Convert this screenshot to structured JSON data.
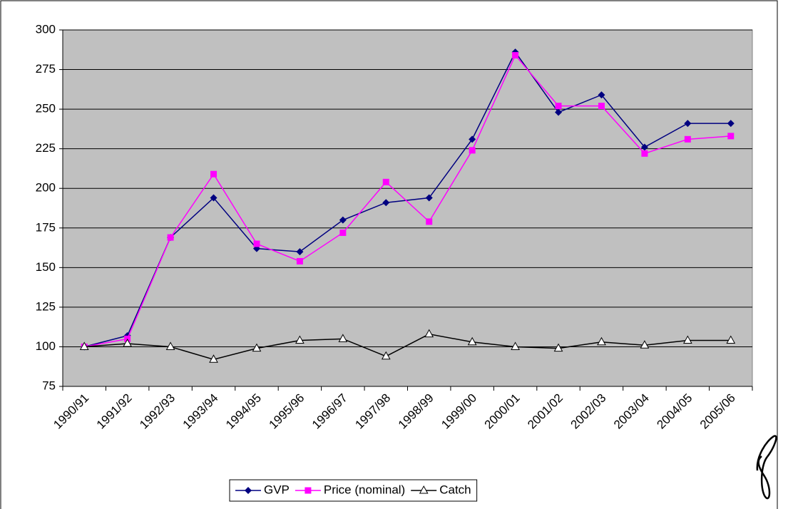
{
  "chart_data": {
    "type": "line",
    "categories": [
      "1990/91",
      "1991/92",
      "1992/93",
      "1993/94",
      "1994/95",
      "1995/96",
      "1996/97",
      "1997/98",
      "1998/99",
      "1999/00",
      "2000/01",
      "2001/02",
      "2002/03",
      "2003/04",
      "2004/05",
      "2005/06"
    ],
    "series": [
      {
        "name": "GVP",
        "color": "#000080",
        "marker": "diamond",
        "values": [
          100,
          107,
          169,
          194,
          162,
          160,
          180,
          191,
          194,
          231,
          286,
          248,
          259,
          226,
          241,
          241
        ]
      },
      {
        "name": "Price (nominal)",
        "color": "#ff00ff",
        "marker": "square",
        "values": [
          100,
          105,
          169,
          209,
          165,
          154,
          172,
          204,
          179,
          224,
          284,
          252,
          252,
          222,
          231,
          233
        ]
      },
      {
        "name": "Catch",
        "color": "#000000",
        "marker": "triangle",
        "values": [
          100,
          102,
          100,
          92,
          99,
          104,
          105,
          94,
          108,
          103,
          100,
          99,
          103,
          101,
          104,
          104
        ]
      }
    ],
    "ylim": [
      75,
      300
    ],
    "yticks": [
      75,
      100,
      125,
      150,
      175,
      200,
      225,
      250,
      275,
      300
    ],
    "grid": true,
    "legend": "bottom"
  }
}
